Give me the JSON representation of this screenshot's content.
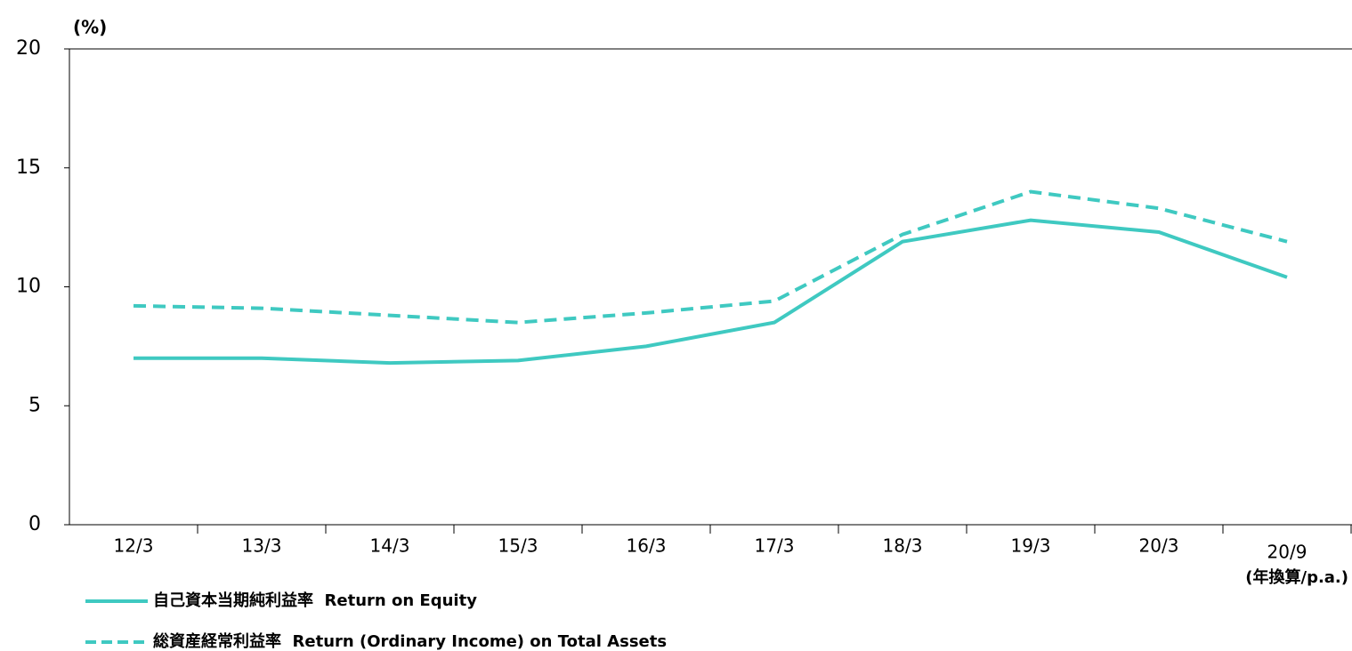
{
  "chart_data": {
    "type": "line",
    "y_axis_label": "(%)",
    "categories": [
      "12/3",
      "13/3",
      "14/3",
      "15/3",
      "16/3",
      "17/3",
      "18/3",
      "19/3",
      "20/3",
      "20/9"
    ],
    "category_note": "(年換算/p.a.)",
    "series": [
      {
        "name": "自己資本当期純利益率  Return on Equity",
        "color": "#3fc9c1",
        "dash": false,
        "values": [
          7.0,
          7.0,
          6.8,
          6.9,
          7.5,
          8.5,
          11.9,
          12.8,
          12.3,
          10.4
        ]
      },
      {
        "name": "総資産経常利益率  Return (Ordinary Income) on Total Assets",
        "color": "#3fc9c1",
        "dash": true,
        "values": [
          9.2,
          9.1,
          8.8,
          8.5,
          8.9,
          9.4,
          12.2,
          14.0,
          13.3,
          11.9
        ]
      }
    ],
    "ylim": [
      0,
      20
    ],
    "yticks": [
      0,
      5,
      10,
      15,
      20
    ]
  }
}
